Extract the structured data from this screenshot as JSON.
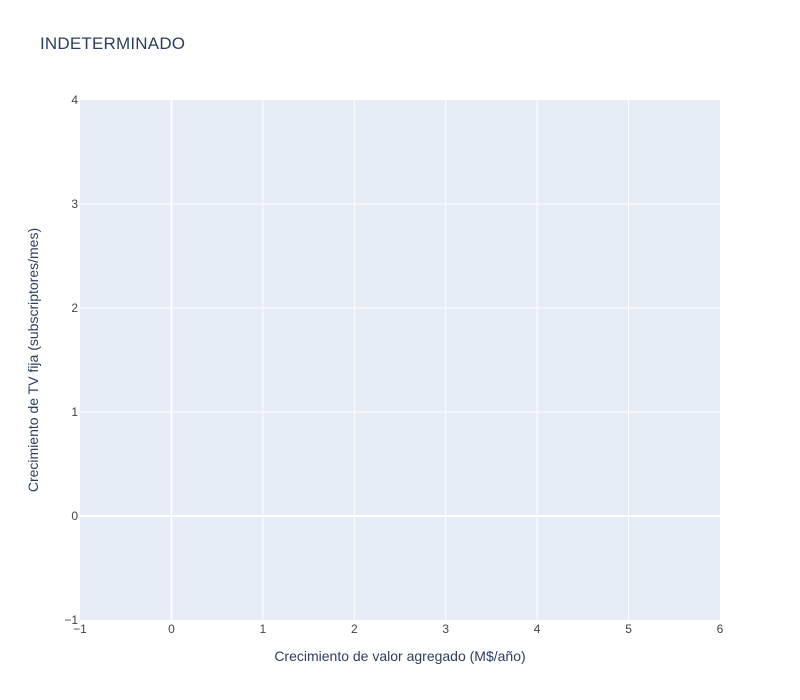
{
  "chart_data": {
    "type": "scatter",
    "title": "INDETERMINADO",
    "xlabel": "Crecimiento de valor agregado (M$/año)",
    "ylabel": "Crecimiento de TV fija (subscriptores/mes)",
    "xlim": [
      -1,
      6
    ],
    "ylim": [
      -1,
      4
    ],
    "x_ticks": [
      -1,
      0,
      1,
      2,
      3,
      4,
      5,
      6
    ],
    "y_ticks": [
      -1,
      0,
      1,
      2,
      3,
      4
    ],
    "x_tick_labels": [
      "−1",
      "0",
      "1",
      "2",
      "3",
      "4",
      "5",
      "6"
    ],
    "y_tick_labels": [
      "−1",
      "0",
      "1",
      "2",
      "3",
      "4"
    ],
    "grid": true,
    "series": []
  },
  "colors": {
    "plot_background": "#e5ecf6",
    "grid": "#ffffff",
    "zero_line": "#ffffff",
    "text": "#2a3f5f",
    "tick_text": "#444444"
  }
}
